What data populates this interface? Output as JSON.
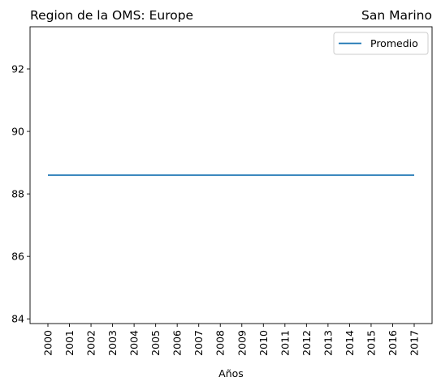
{
  "chart_data": {
    "type": "line",
    "title_left": "Region de la OMS: Europe",
    "title_right": "San Marino",
    "xlabel": "Años",
    "ylabel": "",
    "x": [
      "2000",
      "2001",
      "2002",
      "2003",
      "2004",
      "2005",
      "2006",
      "2007",
      "2008",
      "2009",
      "2010",
      "2011",
      "2012",
      "2013",
      "2014",
      "2015",
      "2016",
      "2017"
    ],
    "ylim": [
      83.85,
      93.35
    ],
    "yticks": [
      84,
      86,
      88,
      90,
      92
    ],
    "series": [
      {
        "name": "Promedio",
        "color": "#1f77b4",
        "values": [
          88.6,
          88.6,
          88.6,
          88.6,
          88.6,
          88.6,
          88.6,
          88.6,
          88.6,
          88.6,
          88.6,
          88.6,
          88.6,
          88.6,
          88.6,
          88.6,
          88.6,
          88.6
        ]
      }
    ],
    "grid": false,
    "legend_position": "top-right"
  }
}
